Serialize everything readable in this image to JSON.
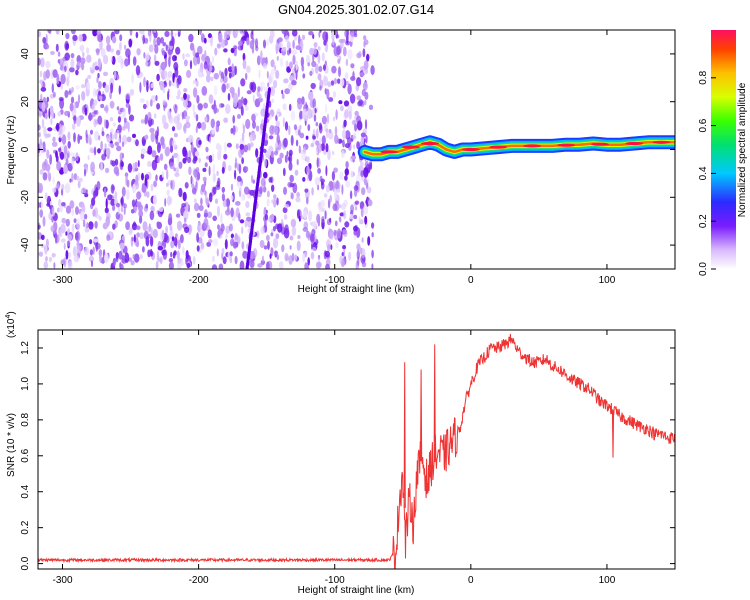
{
  "title": "GN04.2025.301.02.07.G14",
  "colors": {
    "snr_line": "#ee3333",
    "noise_purple": "#6a0fe8",
    "axis": "#000000"
  },
  "chart_data": [
    {
      "type": "heatmap",
      "xlabel": "Height of straight line (km)",
      "ylabel": "Frequency (Hz)",
      "xlim": [
        -318,
        150
      ],
      "ylim": [
        -50,
        50
      ],
      "x_ticks": [
        -300,
        -200,
        -100,
        0,
        100
      ],
      "y_ticks": [
        -40,
        -20,
        0,
        20,
        40
      ],
      "noise_region_x": [
        -318,
        -72
      ],
      "signal_ridge": {
        "x": [
          -78,
          -72,
          -66,
          -60,
          -54,
          -48,
          -42,
          -36,
          -30,
          -24,
          -18,
          -12,
          -6,
          0,
          10,
          20,
          30,
          40,
          50,
          60,
          70,
          80,
          90,
          100,
          110,
          120,
          130,
          140,
          150
        ],
        "frequency": [
          -1,
          -2,
          -2,
          -1,
          -1,
          0,
          1,
          2,
          3,
          2,
          0,
          -1,
          0,
          0,
          0.5,
          1,
          1.5,
          1.5,
          1.5,
          1.5,
          2,
          2,
          2.5,
          2,
          2,
          2.5,
          3,
          3,
          3
        ]
      },
      "colorbar": {
        "label": "Normalized spectral amplitude",
        "range": [
          0,
          1
        ],
        "ticks": [
          "0.0",
          "0.2",
          "0.4",
          "0.6",
          "0.8"
        ]
      }
    },
    {
      "type": "line",
      "xlabel": "Height of straight line (km)",
      "ylabel": "SNR (10 * v/v)",
      "scale_note": "(x10",
      "scale_exp": "4",
      "scale_close": ")",
      "xlim": [
        -318,
        150
      ],
      "ylim": [
        -0.03,
        1.3
      ],
      "x_ticks": [
        -300,
        -200,
        -100,
        0,
        100
      ],
      "y_ticks": [
        "0.0",
        "0.2",
        "0.4",
        "0.6",
        "0.8",
        "1.0",
        "1.2"
      ],
      "series": [
        {
          "x": [
            -318,
            -250,
            -150,
            -100,
            -60,
            -57,
            -55,
            -52,
            -50,
            -48,
            -46,
            -44,
            -42,
            -40,
            -36,
            -32,
            -28,
            -24,
            -20,
            -16,
            -12,
            -8,
            -4,
            0,
            5,
            10,
            15,
            20,
            25,
            30,
            35,
            40,
            45,
            50,
            55,
            60,
            65,
            70,
            75,
            80,
            85,
            90,
            95,
            100,
            105,
            110,
            115,
            120,
            125,
            130,
            135,
            140,
            145,
            150
          ],
          "values": [
            0.02,
            0.02,
            0.02,
            0.02,
            0.02,
            0.05,
            0.08,
            0.4,
            0.5,
            0.12,
            0.3,
            0.35,
            0.2,
            0.48,
            0.6,
            0.45,
            0.58,
            0.62,
            0.6,
            0.65,
            0.7,
            0.75,
            0.9,
            1.0,
            1.1,
            1.15,
            1.2,
            1.2,
            1.22,
            1.25,
            1.18,
            1.15,
            1.12,
            1.12,
            1.14,
            1.1,
            1.08,
            1.05,
            1.02,
            1.0,
            0.98,
            0.95,
            0.9,
            0.88,
            0.85,
            0.82,
            0.8,
            0.78,
            0.76,
            0.75,
            0.72,
            0.72,
            0.7,
            0.7
          ]
        }
      ],
      "spikes": [
        {
          "x": -49,
          "value": 1.12
        },
        {
          "x": -37,
          "value": 1.08
        },
        {
          "x": -27,
          "value": 1.22
        },
        {
          "x": 104,
          "value": 0.59
        }
      ]
    }
  ]
}
